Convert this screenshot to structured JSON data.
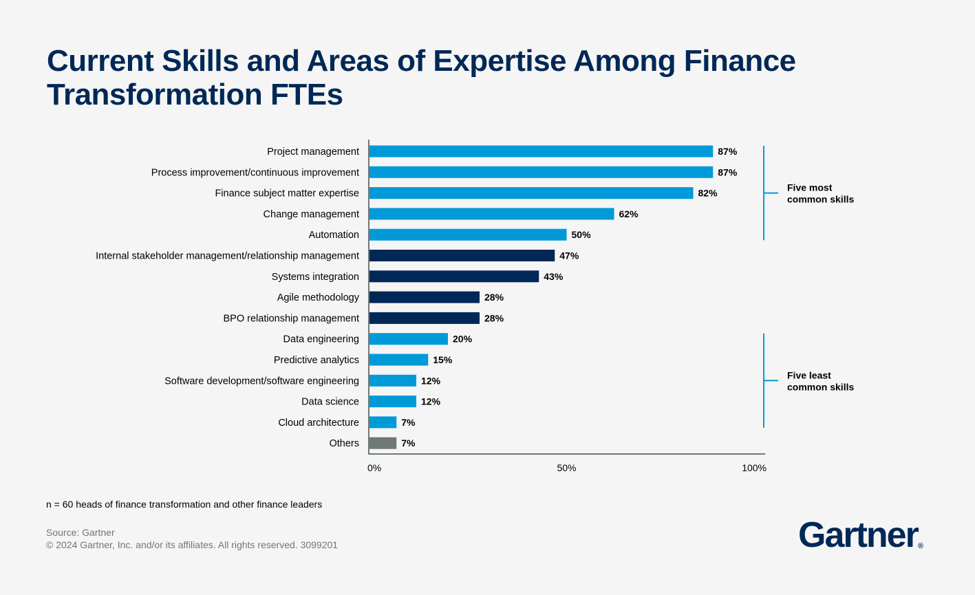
{
  "chart_data": {
    "type": "bar",
    "orientation": "horizontal",
    "title": "Current Skills and Areas of Expertise Among Finance Transformation FTEs",
    "categories": [
      "Project management",
      "Process improvement/continuous improvement",
      "Finance subject matter expertise",
      "Change management",
      "Automation",
      "Internal stakeholder management/relationship management",
      "Systems integration",
      "Agile methodology",
      "BPO relationship management",
      "Data engineering",
      "Predictive analytics",
      "Software development/software engineering",
      "Data science",
      "Cloud architecture",
      "Others"
    ],
    "values": [
      87,
      87,
      82,
      62,
      50,
      47,
      43,
      28,
      28,
      20,
      15,
      12,
      12,
      7,
      7
    ],
    "value_labels": [
      "87%",
      "87%",
      "82%",
      "62%",
      "50%",
      "47%",
      "43%",
      "28%",
      "28%",
      "20%",
      "15%",
      "12%",
      "12%",
      "7%",
      "7%"
    ],
    "bar_groups": [
      "highlight",
      "highlight",
      "highlight",
      "highlight",
      "highlight",
      "middle",
      "middle",
      "middle",
      "middle",
      "highlight",
      "highlight",
      "highlight",
      "highlight",
      "highlight",
      "other"
    ],
    "colors": {
      "highlight": "#009ad9",
      "middle": "#002856",
      "other": "#6f7777",
      "axis": "#6f7777",
      "title": "#002856"
    },
    "xlim": [
      0,
      100
    ],
    "xticks": [
      0,
      50,
      100
    ],
    "xtick_labels": [
      "0%",
      "50%",
      "100%"
    ],
    "grid": false,
    "annotations": [
      {
        "text_lines": [
          "Five most",
          "common skills"
        ],
        "from_category": 0,
        "to_category": 4
      },
      {
        "text_lines": [
          "Five least",
          "common skills"
        ],
        "from_category": 9,
        "to_category": 13
      }
    ]
  },
  "footer": {
    "sample_note": "n = 60 heads of finance transformation and other finance leaders",
    "source": "Source: Gartner",
    "copyright": "© 2024 Gartner, Inc. and/or its affiliates. All rights reserved. 3099201",
    "logo_text": "Gartner"
  }
}
